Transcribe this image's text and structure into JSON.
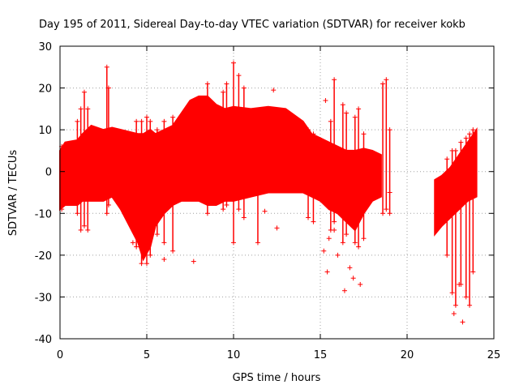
{
  "chart_data": {
    "type": "scatter",
    "title": "Day 195 of 2011, Sidereal Day-to-day VTEC variation (SDTVAR) for receiver kokb",
    "xlabel": "GPS time / hours",
    "ylabel": "SDTVAR / TECUs",
    "xlim": [
      0,
      25
    ],
    "ylim": [
      -40,
      30
    ],
    "xticks": [
      0,
      5,
      10,
      15,
      20,
      25
    ],
    "xtick_labels": [
      "0",
      "5",
      "10",
      "15",
      "20",
      "25"
    ],
    "yticks": [
      -40,
      -30,
      -20,
      -10,
      0,
      10,
      20,
      30
    ],
    "ytick_labels": [
      "-40",
      "-30",
      "-20",
      "-10",
      "0",
      "10",
      "20",
      "30"
    ],
    "grid": true,
    "marker": "+",
    "series": [
      {
        "name": "SDTVAR",
        "color": "#ff0000",
        "envelope": [
          {
            "x": 0.0,
            "lo": -9,
            "hi": 5
          },
          {
            "x": 0.3,
            "lo": -8,
            "hi": 7
          },
          {
            "x": 1.0,
            "lo": -8,
            "hi": 7.5
          },
          {
            "x": 1.3,
            "lo": -7,
            "hi": 9
          },
          {
            "x": 1.8,
            "lo": -7,
            "hi": 11
          },
          {
            "x": 2.5,
            "lo": -7,
            "hi": 10
          },
          {
            "x": 3.0,
            "lo": -6,
            "hi": 10.5
          },
          {
            "x": 3.5,
            "lo": -9,
            "hi": 10
          },
          {
            "x": 4.0,
            "lo": -13,
            "hi": 9.5
          },
          {
            "x": 4.5,
            "lo": -17,
            "hi": 9
          },
          {
            "x": 4.8,
            "lo": -21,
            "hi": 9
          },
          {
            "x": 5.2,
            "lo": -18,
            "hi": 10
          },
          {
            "x": 5.5,
            "lo": -13,
            "hi": 9
          },
          {
            "x": 6.0,
            "lo": -10,
            "hi": 10
          },
          {
            "x": 6.5,
            "lo": -8,
            "hi": 11
          },
          {
            "x": 7.0,
            "lo": -7,
            "hi": 14
          },
          {
            "x": 7.5,
            "lo": -7,
            "hi": 17
          },
          {
            "x": 8.0,
            "lo": -7,
            "hi": 18
          },
          {
            "x": 8.5,
            "lo": -8,
            "hi": 18
          },
          {
            "x": 9.0,
            "lo": -8,
            "hi": 16
          },
          {
            "x": 9.5,
            "lo": -7,
            "hi": 15
          },
          {
            "x": 10.0,
            "lo": -7,
            "hi": 15.5
          },
          {
            "x": 11.0,
            "lo": -6,
            "hi": 15
          },
          {
            "x": 12.0,
            "lo": -5,
            "hi": 15.5
          },
          {
            "x": 13.0,
            "lo": -5,
            "hi": 15
          },
          {
            "x": 14.0,
            "lo": -5,
            "hi": 12
          },
          {
            "x": 14.5,
            "lo": -6,
            "hi": 9
          },
          {
            "x": 15.0,
            "lo": -7,
            "hi": 8
          },
          {
            "x": 15.5,
            "lo": -9,
            "hi": 7
          },
          {
            "x": 16.0,
            "lo": -10,
            "hi": 6
          },
          {
            "x": 16.5,
            "lo": -12,
            "hi": 5
          },
          {
            "x": 17.0,
            "lo": -14,
            "hi": 5
          },
          {
            "x": 17.5,
            "lo": -10,
            "hi": 5.5
          },
          {
            "x": 18.0,
            "lo": -7,
            "hi": 5
          },
          {
            "x": 18.5,
            "lo": -6,
            "hi": 4
          }
        ],
        "envelope_segment_2": [
          {
            "x": 21.6,
            "lo": -15,
            "hi": -2
          },
          {
            "x": 22.0,
            "lo": -13,
            "hi": -1
          },
          {
            "x": 22.5,
            "lo": -11,
            "hi": 1
          },
          {
            "x": 23.0,
            "lo": -9,
            "hi": 4
          },
          {
            "x": 23.5,
            "lo": -7,
            "hi": 7
          },
          {
            "x": 24.0,
            "lo": -6,
            "hi": 10
          }
        ],
        "spikes": [
          {
            "x": 0.1,
            "lo": -9,
            "hi": 6
          },
          {
            "x": 1.0,
            "lo": -10,
            "hi": 12
          },
          {
            "x": 1.2,
            "lo": -14,
            "hi": 15
          },
          {
            "x": 1.4,
            "lo": -13,
            "hi": 19
          },
          {
            "x": 1.6,
            "lo": -14,
            "hi": 15
          },
          {
            "x": 2.7,
            "lo": -10,
            "hi": 25
          },
          {
            "x": 2.8,
            "lo": -8,
            "hi": 20
          },
          {
            "x": 4.4,
            "lo": -18,
            "hi": 12
          },
          {
            "x": 4.7,
            "lo": -22,
            "hi": 12
          },
          {
            "x": 5.0,
            "lo": -22,
            "hi": 13
          },
          {
            "x": 5.2,
            "lo": -20,
            "hi": 12
          },
          {
            "x": 5.6,
            "lo": -15,
            "hi": 10
          },
          {
            "x": 6.0,
            "lo": -17,
            "hi": 12
          },
          {
            "x": 6.5,
            "lo": -19,
            "hi": 13
          },
          {
            "x": 8.5,
            "lo": -10,
            "hi": 21
          },
          {
            "x": 9.4,
            "lo": -9,
            "hi": 19
          },
          {
            "x": 9.6,
            "lo": -8,
            "hi": 21
          },
          {
            "x": 10.0,
            "lo": -17,
            "hi": 26
          },
          {
            "x": 10.3,
            "lo": -9,
            "hi": 23
          },
          {
            "x": 10.6,
            "lo": -11,
            "hi": 20
          },
          {
            "x": 11.4,
            "lo": -17,
            "hi": 10
          },
          {
            "x": 14.3,
            "lo": -11,
            "hi": 10
          },
          {
            "x": 14.6,
            "lo": -12,
            "hi": 9
          },
          {
            "x": 15.6,
            "lo": -14,
            "hi": 12
          },
          {
            "x": 15.8,
            "lo": -12,
            "hi": 22
          },
          {
            "x": 16.3,
            "lo": -17,
            "hi": 16
          },
          {
            "x": 16.5,
            "lo": -15,
            "hi": 14
          },
          {
            "x": 17.0,
            "lo": -17,
            "hi": 13
          },
          {
            "x": 17.2,
            "lo": -18,
            "hi": 15
          },
          {
            "x": 17.5,
            "lo": -16,
            "hi": 9
          },
          {
            "x": 18.6,
            "lo": -10,
            "hi": 21
          },
          {
            "x": 18.8,
            "lo": -9,
            "hi": 22
          },
          {
            "x": 19.0,
            "lo": -10,
            "hi": 10
          },
          {
            "x": 22.3,
            "lo": -20,
            "hi": 3
          },
          {
            "x": 22.6,
            "lo": -29,
            "hi": 5
          },
          {
            "x": 22.8,
            "lo": -32,
            "hi": 5
          },
          {
            "x": 23.1,
            "lo": -27,
            "hi": 7
          },
          {
            "x": 23.4,
            "lo": -30,
            "hi": 8
          },
          {
            "x": 23.6,
            "lo": -32,
            "hi": 9
          },
          {
            "x": 23.8,
            "lo": -24,
            "hi": 10
          }
        ],
        "outliers": [
          [
            7.7,
            -21.5
          ],
          [
            6.0,
            -21
          ],
          [
            11.8,
            -9.5
          ],
          [
            12.3,
            19.5
          ],
          [
            12.5,
            -13.5
          ],
          [
            15.2,
            -19
          ],
          [
            15.4,
            -24
          ],
          [
            15.5,
            -16
          ],
          [
            15.8,
            -14
          ],
          [
            16.0,
            -20
          ],
          [
            16.4,
            -28.5
          ],
          [
            16.7,
            -23
          ],
          [
            16.9,
            -25.5
          ],
          [
            17.3,
            -27
          ],
          [
            15.3,
            17
          ],
          [
            19.0,
            -5
          ],
          [
            23.2,
            -36
          ],
          [
            23.0,
            -27
          ],
          [
            22.7,
            -34
          ],
          [
            4.2,
            -17
          ]
        ]
      }
    ]
  }
}
